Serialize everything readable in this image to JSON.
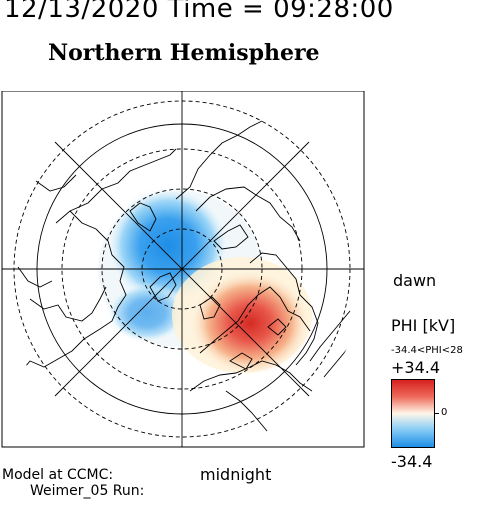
{
  "header": {
    "datetime": "12/13/2020 Time = 09:28:00",
    "title": "Northern Hemisphere"
  },
  "map": {
    "orientation": {
      "right": "dawn",
      "bottom": "midnight"
    },
    "features": [
      "coastlines",
      "latitude-circles",
      "meridian-lines",
      "potential-pattern"
    ]
  },
  "legend": {
    "title": "PHI [kV]",
    "range_text": "-34.4<PHI<28",
    "max": "+34.4",
    "zero": "0",
    "min": "-34.4",
    "colors": {
      "positive": "#d62020",
      "neutral": "#fff6e8",
      "negative": "#1e8ee6"
    }
  },
  "footer": {
    "line1": "Model at CCMC:",
    "line2": "Weimer_05 Run:"
  }
}
